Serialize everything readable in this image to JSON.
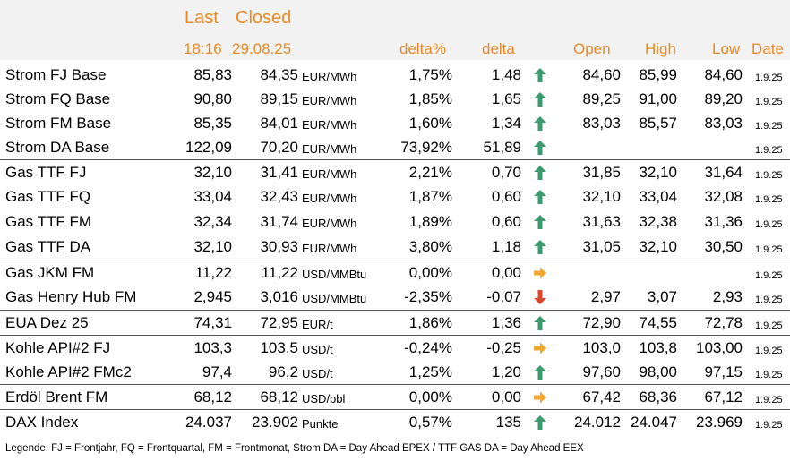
{
  "header": {
    "last_label": "Last",
    "closed_label": "Closed",
    "last_time": "18:16",
    "closed_date": "29.08.25",
    "delta_pct_label": "delta%",
    "delta_label": "delta",
    "open_label": "Open",
    "high_label": "High",
    "low_label": "Low",
    "date_label": "Date"
  },
  "colors": {
    "header_text": "#e78a26",
    "header_bg": "#f2f2f2",
    "up": "#3d9a6e",
    "down": "#d9442b",
    "flat": "#f0a830"
  },
  "rows": [
    {
      "name": "Strom FJ Base",
      "last": "85,83",
      "closed": "84,35",
      "unit": "EUR/MWh",
      "pct": "1,75%",
      "delta": "1,48",
      "trend": "up",
      "open": "84,60",
      "high": "85,99",
      "low": "84,60",
      "date": "1.9.25"
    },
    {
      "name": "Strom FQ Base",
      "last": "90,80",
      "closed": "89,15",
      "unit": "EUR/MWh",
      "pct": "1,85%",
      "delta": "1,65",
      "trend": "up",
      "open": "89,25",
      "high": "91,00",
      "low": "89,20",
      "date": "1.9.25"
    },
    {
      "name": "Strom FM Base",
      "last": "85,35",
      "closed": "84,01",
      "unit": "EUR/MWh",
      "pct": "1,60%",
      "delta": "1,34",
      "trend": "up",
      "open": "83,03",
      "high": "85,57",
      "low": "83,03",
      "date": "1.9.25"
    },
    {
      "name": "Strom DA Base",
      "last": "122,09",
      "closed": "70,20",
      "unit": "EUR/MWh",
      "pct": "73,92%",
      "delta": "51,89",
      "trend": "up",
      "open": "",
      "high": "",
      "low": "",
      "date": "1.9.25"
    },
    {
      "name": "Gas TTF FJ",
      "last": "32,10",
      "closed": "31,41",
      "unit": "EUR/MWh",
      "pct": "2,21%",
      "delta": "0,70",
      "trend": "up",
      "open": "31,85",
      "high": "32,10",
      "low": "31,64",
      "date": "1.9.25"
    },
    {
      "name": "Gas TTF FQ",
      "last": "33,04",
      "closed": "32,43",
      "unit": "EUR/MWh",
      "pct": "1,87%",
      "delta": "0,60",
      "trend": "up",
      "open": "32,10",
      "high": "33,04",
      "low": "32,08",
      "date": "1.9.25"
    },
    {
      "name": "Gas TTF FM",
      "last": "32,34",
      "closed": "31,74",
      "unit": "EUR/MWh",
      "pct": "1,89%",
      "delta": "0,60",
      "trend": "up",
      "open": "31,63",
      "high": "32,38",
      "low": "31,36",
      "date": "1.9.25"
    },
    {
      "name": "Gas TTF DA",
      "last": "32,10",
      "closed": "30,93",
      "unit": "EUR/MWh",
      "pct": "3,80%",
      "delta": "1,18",
      "trend": "up",
      "open": "31,05",
      "high": "32,10",
      "low": "30,50",
      "date": "1.9.25"
    },
    {
      "name": "Gas JKM FM",
      "last": "11,22",
      "closed": "11,22",
      "unit": "USD/MMBtu",
      "pct": "0,00%",
      "delta": "0,00",
      "trend": "flat",
      "open": "",
      "high": "",
      "low": "",
      "date": "1.9.25"
    },
    {
      "name": "Gas Henry Hub FM",
      "last": "2,945",
      "closed": "3,016",
      "unit": "USD/MMBtu",
      "pct": "-2,35%",
      "delta": "-0,07",
      "trend": "down",
      "open": "2,97",
      "high": "3,07",
      "low": "2,93",
      "date": "1.9.25"
    },
    {
      "name": "EUA Dez 25",
      "last": "74,31",
      "closed": "72,95",
      "unit": "EUR/t",
      "pct": "1,86%",
      "delta": "1,36",
      "trend": "up",
      "open": "72,90",
      "high": "74,55",
      "low": "72,78",
      "date": "1.9.25"
    },
    {
      "name": "Kohle API#2 FJ",
      "last": "103,3",
      "closed": "103,5",
      "unit": "USD/t",
      "pct": "-0,24%",
      "delta": "-0,25",
      "trend": "flat",
      "open": "103,0",
      "high": "103,8",
      "low": "103,00",
      "date": "1.9.25"
    },
    {
      "name": "Kohle API#2 FMc2",
      "last": "97,4",
      "closed": "96,2",
      "unit": "USD/t",
      "pct": "1,25%",
      "delta": "1,20",
      "trend": "up",
      "open": "97,60",
      "high": "98,00",
      "low": "97,15",
      "date": "1.9.25"
    },
    {
      "name": "Erdöl Brent FM",
      "last": "68,12",
      "closed": "68,12",
      "unit": "USD/bbl",
      "pct": "0,00%",
      "delta": "0,00",
      "trend": "flat",
      "open": "67,42",
      "high": "68,36",
      "low": "67,12",
      "date": "1.9.25"
    },
    {
      "name": "DAX Index",
      "last": "24.037",
      "closed": "23.902",
      "unit": "Punkte",
      "pct": "0,57%",
      "delta": "135",
      "trend": "up",
      "open": "24.012",
      "high": "24.047",
      "low": "23.969",
      "date": "1.9.25"
    }
  ],
  "legend": "Legende: FJ = Frontjahr, FQ = Frontquartal, FM = Frontmonat, Strom DA = Day Ahead EPEX / TTF GAS DA = Day Ahead EEX"
}
